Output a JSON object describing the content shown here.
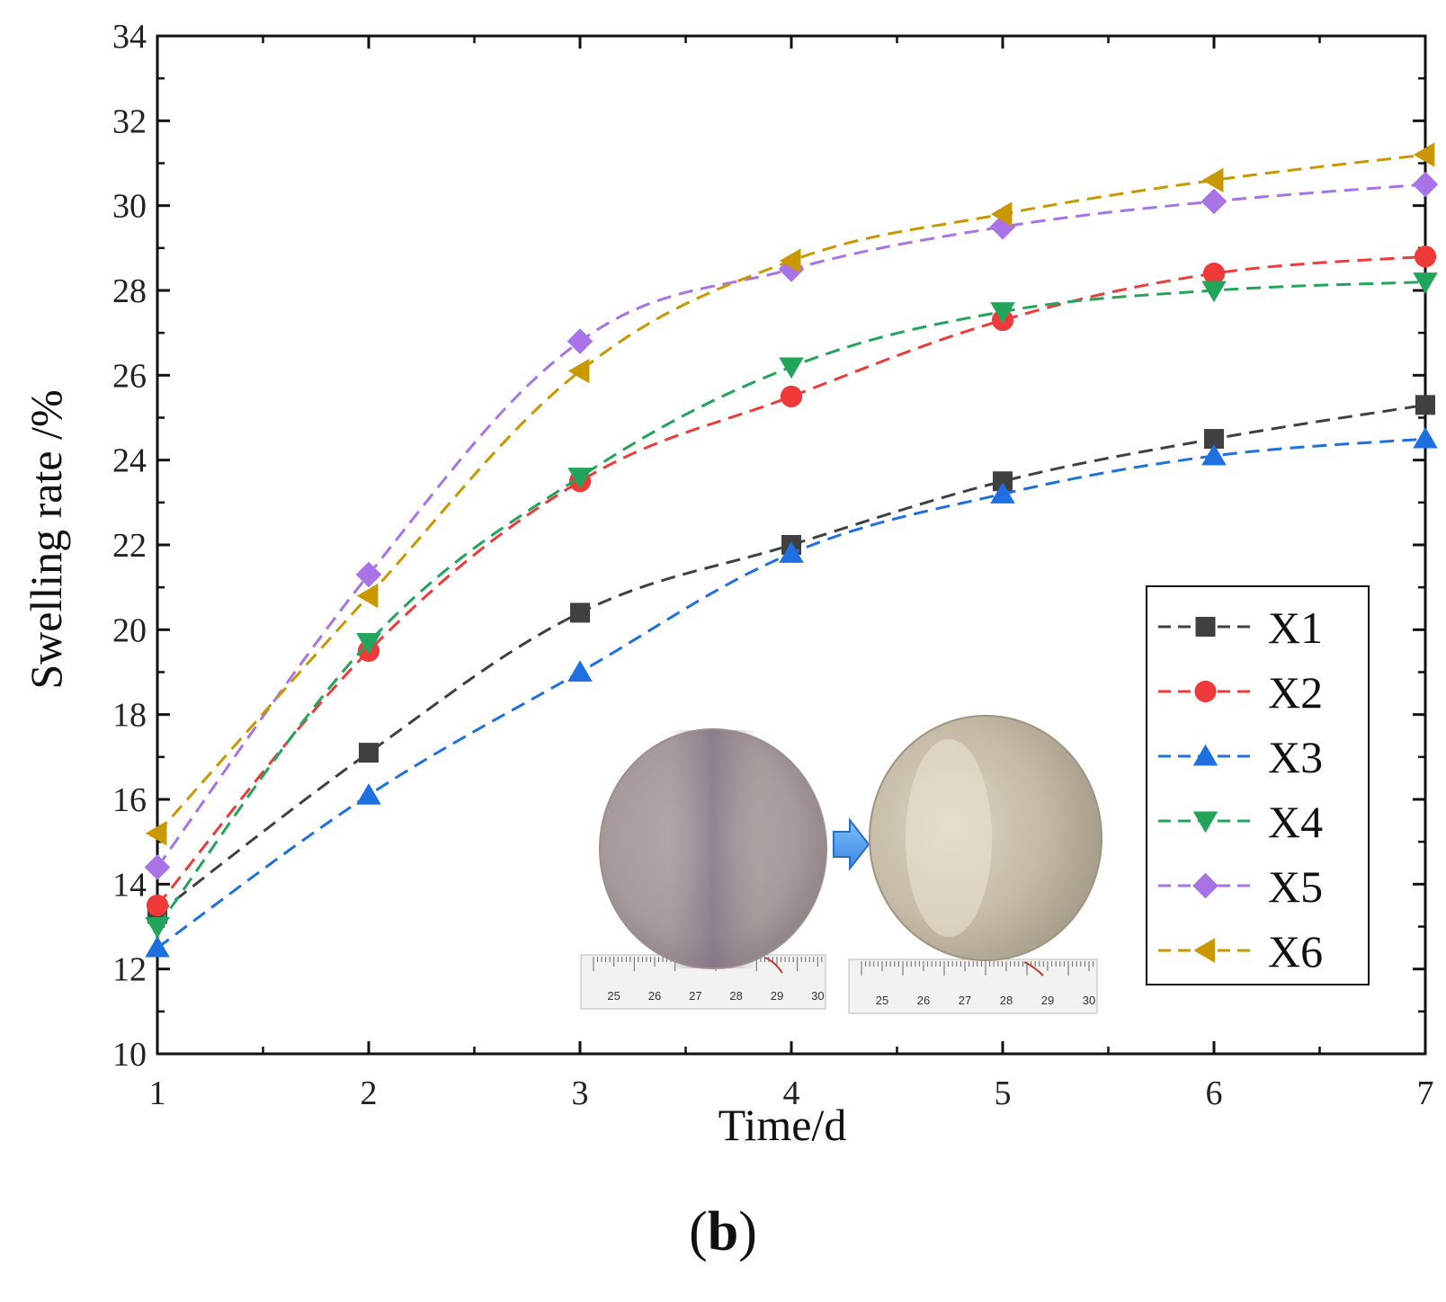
{
  "chart_data": {
    "type": "line",
    "xlabel": "Time/d",
    "ylabel": "Swelling rate /%",
    "xlim": [
      1,
      7
    ],
    "ylim": [
      10,
      34
    ],
    "xticks": [
      1,
      2,
      3,
      4,
      5,
      6,
      7
    ],
    "yticks": [
      10,
      12,
      14,
      16,
      18,
      20,
      22,
      24,
      26,
      28,
      30,
      32,
      34
    ],
    "x": [
      1,
      2,
      3,
      4,
      5,
      6,
      7
    ],
    "line_style": "dashed",
    "grid": false,
    "legend_position": "bottom-right",
    "series": [
      {
        "name": "X1",
        "marker": "square",
        "color": "#404040",
        "values": [
          13.3,
          17.1,
          20.4,
          22.0,
          23.5,
          24.5,
          25.3
        ]
      },
      {
        "name": "X2",
        "marker": "circle",
        "color": "#f03a3a",
        "values": [
          13.5,
          19.5,
          23.5,
          25.5,
          27.3,
          28.4,
          28.8
        ]
      },
      {
        "name": "X3",
        "marker": "triangle-up",
        "color": "#1e6fe0",
        "values": [
          12.5,
          16.1,
          19.0,
          21.8,
          23.2,
          24.1,
          24.5
        ]
      },
      {
        "name": "X4",
        "marker": "triangle-down",
        "color": "#22a45a",
        "values": [
          13.0,
          19.7,
          23.6,
          26.2,
          27.5,
          28.0,
          28.2
        ]
      },
      {
        "name": "X5",
        "marker": "diamond",
        "color": "#a773e6",
        "values": [
          14.4,
          21.3,
          26.8,
          28.5,
          29.5,
          30.1,
          30.5
        ]
      },
      {
        "name": "X6",
        "marker": "triangle-left",
        "color": "#c99700",
        "values": [
          15.2,
          20.8,
          26.1,
          28.7,
          29.8,
          30.6,
          31.2
        ]
      }
    ],
    "panel_label": {
      "open": "(",
      "letter": "b",
      "close": ")"
    },
    "inset": {
      "description_visible": false,
      "ruler_left": [
        "25",
        "26",
        "27",
        "28",
        "29",
        "30"
      ],
      "ruler_right": [
        "25",
        "26",
        "27",
        "28",
        "29",
        "30"
      ]
    }
  }
}
